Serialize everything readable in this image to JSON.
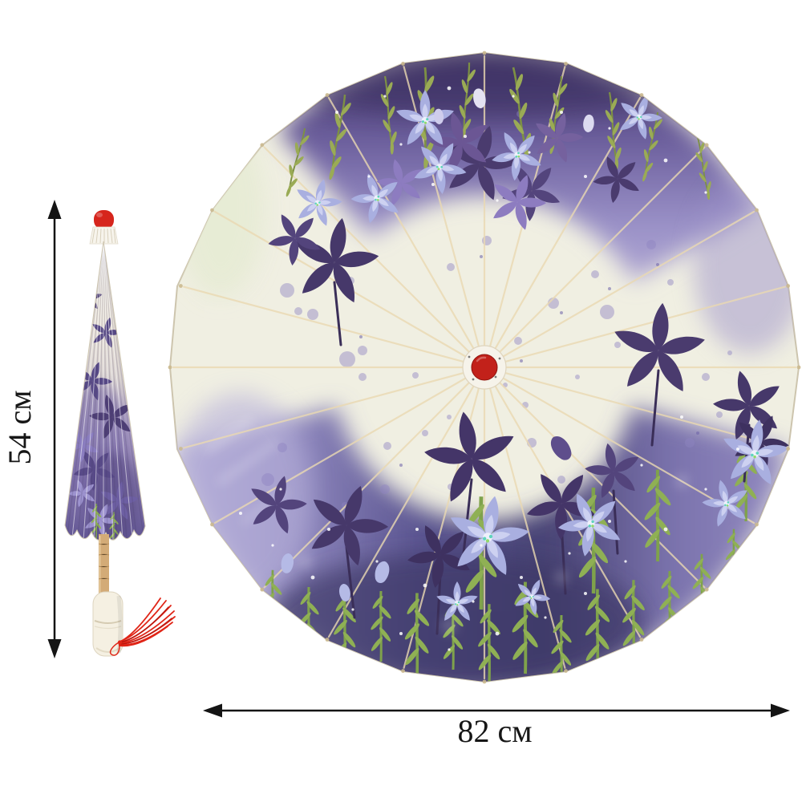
{
  "page": {
    "background": "#ffffff"
  },
  "annotations": {
    "height_label": "54 см",
    "height_value_cm": 54,
    "width_label": "82 см",
    "width_value_cm": 82,
    "unit": "см"
  },
  "icons": {
    "height_arrows": [
      "arrow-up",
      "arrow-down"
    ],
    "width_arrows": [
      "arrow-left",
      "arrow-right"
    ]
  },
  "colors": {
    "dimension_line": "#141414",
    "label_text": "#161616",
    "canopy_base": "#f0efe2",
    "canopy_top_dark": "#423566",
    "canopy_bottom_dark": "#484374",
    "canopy_lavender": "#b4aed8",
    "flower_dark": "#46386a",
    "flower_lavender": "#a9afe0",
    "foliage_green": "#7fa24b",
    "ribs_cream": "#ead9b2",
    "hub_red": "#c2211a",
    "cap_red": "#d6251c",
    "tassel_red": "#e02517",
    "shaft_wood": "#d3ab77",
    "handle_ivory": "#f5f0e2"
  }
}
